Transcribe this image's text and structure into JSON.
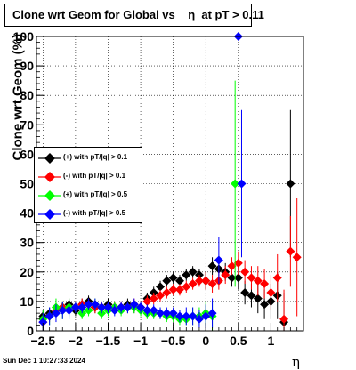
{
  "chart_data": {
    "type": "scatter",
    "title": "Clone wrt Geom for Global vs    η  at pT > 0.11",
    "xlabel": "η",
    "ylabel": "Clone wrt Geom (%)",
    "xlim": [
      -2.6,
      1.5
    ],
    "ylim": [
      0,
      100
    ],
    "x_ticks": [
      "−2.5",
      "−2",
      "−1.5",
      "−1",
      "−0.5",
      "0",
      "0.5",
      "1"
    ],
    "y_ticks": [
      "0",
      "10",
      "20",
      "30",
      "40",
      "50",
      "60",
      "70",
      "80",
      "90",
      "100"
    ],
    "grid": true,
    "legend_position": "left-middle",
    "series": [
      {
        "name": "(+) with pT/|q| > 0.1",
        "color": "#000000",
        "x": [
          -2.5,
          -2.4,
          -2.3,
          -2.2,
          -2.1,
          -2.0,
          -1.9,
          -1.8,
          -1.7,
          -1.6,
          -1.5,
          -1.4,
          -1.3,
          -1.2,
          -1.1,
          -1.0,
          -0.9,
          -0.8,
          -0.7,
          -0.6,
          -0.5,
          -0.4,
          -0.3,
          -0.2,
          -0.1,
          0.0,
          0.1,
          0.2,
          0.3,
          0.4,
          0.5,
          0.6,
          0.7,
          0.8,
          0.9,
          1.0,
          1.1,
          1.2,
          1.3
        ],
        "y": [
          5,
          6,
          7,
          8,
          9,
          7,
          9,
          10,
          8,
          8,
          9,
          8,
          8,
          9,
          8,
          8,
          11,
          13,
          15,
          17,
          18,
          17,
          19,
          20,
          19,
          17,
          22,
          21,
          20,
          18,
          18,
          13,
          12,
          11,
          9,
          10,
          12,
          3,
          50
        ],
        "err": [
          2,
          2,
          2,
          2,
          2,
          2,
          2,
          2,
          2,
          2,
          2,
          2,
          2,
          2,
          2,
          2,
          2,
          2,
          2,
          2,
          2,
          2,
          2,
          2,
          2,
          3,
          3,
          3,
          3,
          3,
          4,
          4,
          4,
          5,
          5,
          6,
          8,
          10,
          25
        ]
      },
      {
        "name": "(-) with pT/|q| > 0.1",
        "color": "#ff0000",
        "x": [
          -2.5,
          -2.4,
          -2.3,
          -2.2,
          -2.1,
          -2.0,
          -1.9,
          -1.8,
          -1.7,
          -1.6,
          -1.5,
          -1.4,
          -1.3,
          -1.2,
          -1.1,
          -1.0,
          -0.9,
          -0.8,
          -0.7,
          -0.6,
          -0.5,
          -0.4,
          -0.3,
          -0.2,
          -0.1,
          0.0,
          0.1,
          0.2,
          0.3,
          0.4,
          0.5,
          0.6,
          0.7,
          0.8,
          0.9,
          1.0,
          1.1,
          1.2,
          1.3,
          1.4
        ],
        "y": [
          3,
          5,
          7,
          8,
          8,
          8,
          9,
          9,
          8,
          8,
          8,
          8,
          8,
          8,
          9,
          8,
          10,
          11,
          12,
          13,
          14,
          14,
          15,
          16,
          17,
          17,
          16,
          17,
          19,
          22,
          23,
          20,
          18,
          17,
          16,
          13,
          18,
          4,
          27,
          25
        ],
        "err": [
          2,
          2,
          2,
          2,
          2,
          2,
          2,
          2,
          2,
          2,
          2,
          2,
          2,
          2,
          2,
          2,
          2,
          2,
          2,
          2,
          2,
          2,
          2,
          2,
          2,
          3,
          3,
          3,
          3,
          3,
          4,
          4,
          4,
          5,
          5,
          6,
          8,
          10,
          12,
          20
        ]
      },
      {
        "name": "(+) with pT/|q| > 0.5",
        "color": "#00ff00",
        "x": [
          -2.5,
          -2.4,
          -2.3,
          -2.2,
          -2.1,
          -2.0,
          -1.9,
          -1.8,
          -1.7,
          -1.6,
          -1.5,
          -1.4,
          -1.3,
          -1.2,
          -1.1,
          -1.0,
          -0.9,
          -0.8,
          -0.7,
          -0.6,
          -0.5,
          -0.4,
          -0.3,
          -0.2,
          -0.1,
          0.0,
          0.1,
          0.45
        ],
        "y": [
          4,
          5,
          8,
          7,
          8,
          8,
          6,
          7,
          9,
          6,
          7,
          8,
          7,
          8,
          8,
          7,
          6,
          6,
          6,
          5,
          5,
          4,
          4,
          5,
          5,
          6,
          5,
          50
        ],
        "err": [
          3,
          3,
          3,
          3,
          3,
          2,
          2,
          2,
          2,
          2,
          2,
          2,
          2,
          2,
          2,
          2,
          2,
          2,
          2,
          2,
          2,
          2,
          2,
          3,
          3,
          4,
          5,
          35
        ]
      },
      {
        "name": "(-) with pT/|q| > 0.5",
        "color": "#0000ff",
        "x": [
          -2.5,
          -2.4,
          -2.3,
          -2.2,
          -2.1,
          -2.0,
          -1.9,
          -1.8,
          -1.7,
          -1.6,
          -1.5,
          -1.4,
          -1.3,
          -1.2,
          -1.1,
          -1.0,
          -0.9,
          -0.8,
          -0.7,
          -0.6,
          -0.5,
          -0.4,
          -0.3,
          -0.2,
          -0.1,
          0.0,
          0.1,
          0.2,
          0.5,
          0.55
        ],
        "y": [
          3,
          5,
          6,
          7,
          7,
          8,
          8,
          9,
          9,
          8,
          8,
          7,
          8,
          8,
          9,
          8,
          7,
          7,
          6,
          6,
          6,
          5,
          5,
          5,
          4,
          5,
          6,
          24,
          100,
          50
        ],
        "err": [
          3,
          3,
          3,
          3,
          3,
          2,
          2,
          2,
          2,
          2,
          2,
          2,
          2,
          2,
          2,
          2,
          2,
          2,
          2,
          2,
          2,
          2,
          3,
          3,
          3,
          4,
          5,
          8,
          0,
          25
        ]
      }
    ]
  },
  "footer": "Sun Dec  1 10:27:33 2024"
}
